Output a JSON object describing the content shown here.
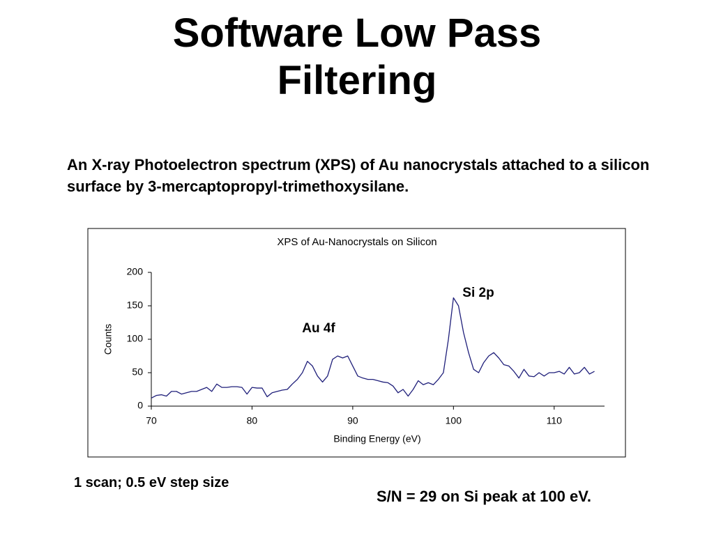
{
  "title_line1": "Software Low Pass",
  "title_line2": "Filtering",
  "description": "An X-ray Photoelectron spectrum (XPS) of Au nanocrystals attached to a silicon surface by 3-mercaptopropyl-trimethoxysilane.",
  "note_left": "1 scan; 0.5 eV step size",
  "note_right": "S/N = 29 on Si peak at 100 eV.",
  "chart_data": {
    "type": "line",
    "title": "XPS of Au-Nanocrystals on Silicon",
    "x_label": "Binding Energy (eV)",
    "y_label": "Counts",
    "annotations": [
      "Au 4f",
      "Si 2p"
    ],
    "x": [
      70,
      70.5,
      71,
      71.5,
      72,
      72.5,
      73,
      73.5,
      74,
      74.5,
      75,
      75.5,
      76,
      76.5,
      77,
      77.5,
      78,
      78.5,
      79,
      79.5,
      80,
      80.5,
      81,
      81.5,
      82,
      82.5,
      83,
      83.5,
      84,
      84.5,
      85,
      85.5,
      86,
      86.5,
      87,
      87.5,
      88,
      88.5,
      89,
      89.5,
      90,
      90.5,
      91,
      91.5,
      92,
      92.5,
      93,
      93.5,
      94,
      94.5,
      95,
      95.5,
      96,
      96.5,
      97,
      97.5,
      98,
      98.5,
      99,
      99.5,
      100,
      100.5,
      101,
      101.5,
      102,
      102.5,
      103,
      103.5,
      104,
      104.5,
      105,
      105.5,
      106,
      106.5,
      107,
      107.5,
      108,
      108.5,
      109,
      109.5,
      110,
      110.5,
      111,
      111.5,
      112,
      112.5,
      113,
      113.5,
      114
    ],
    "series": [
      {
        "color": "#1f1f7a",
        "values": [
          12,
          16,
          17,
          15,
          22,
          22,
          18,
          20,
          22,
          22,
          25,
          28,
          22,
          33,
          28,
          28,
          29,
          29,
          28,
          18,
          28,
          27,
          27,
          14,
          20,
          22,
          24,
          25,
          33,
          40,
          50,
          67,
          60,
          45,
          36,
          45,
          70,
          75,
          72,
          75,
          60,
          45,
          42,
          40,
          40,
          38,
          36,
          35,
          30,
          20,
          25,
          15,
          25,
          38,
          32,
          35,
          32,
          40,
          50,
          100,
          162,
          150,
          110,
          80,
          55,
          50,
          65,
          75,
          80,
          72,
          62,
          60,
          52,
          42,
          55,
          45,
          44,
          50,
          45,
          50,
          50,
          52,
          48,
          58,
          48,
          50,
          58,
          48,
          52
        ]
      }
    ],
    "xlim": [
      70,
      115
    ],
    "xticks": [
      70,
      80,
      90,
      100,
      110
    ],
    "ylim": [
      0,
      200
    ],
    "yticks": [
      0,
      50,
      100,
      150,
      200
    ]
  }
}
